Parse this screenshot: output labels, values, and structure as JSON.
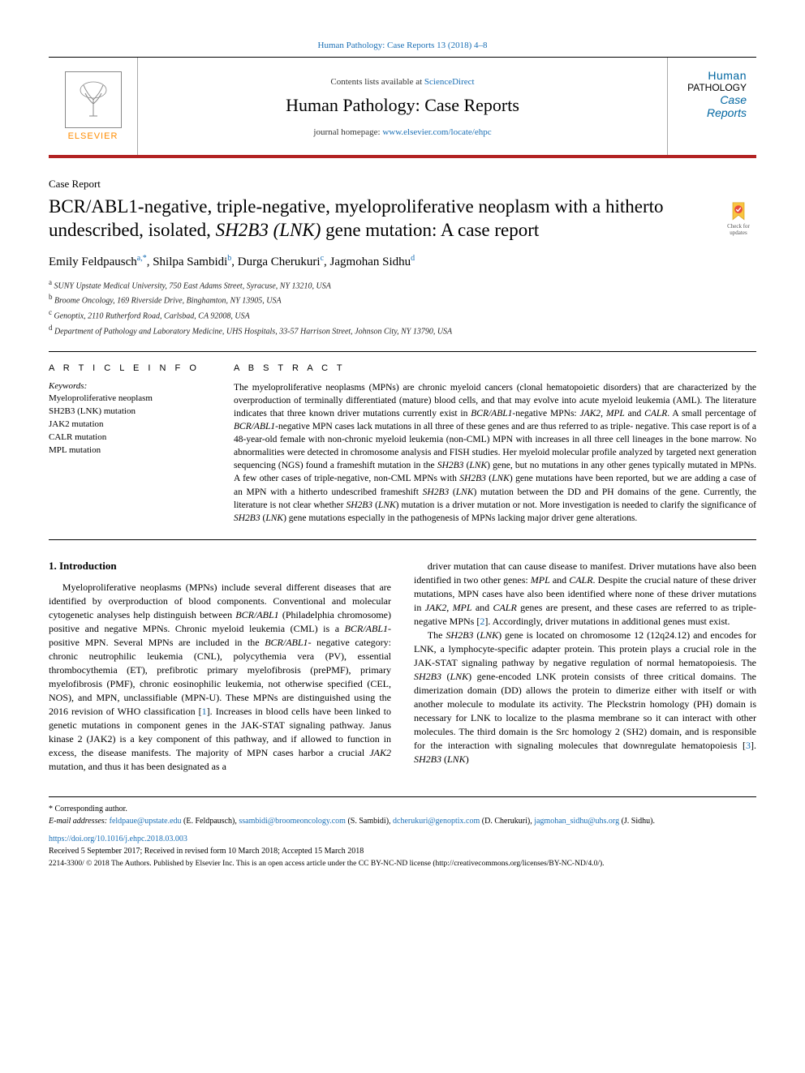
{
  "top_citation": "Human Pathology: Case Reports 13 (2018) 4–8",
  "header": {
    "contents_text": "Contents lists available at ",
    "contents_link": "ScienceDirect",
    "journal_name": "Human Pathology: Case Reports",
    "homepage_text": "journal homepage: ",
    "homepage_link": "www.elsevier.com/locate/ehpc",
    "elsevier_label": "ELSEVIER",
    "cover_l1": "Human",
    "cover_l2": "PATHOLOGY",
    "cover_l3": "Case",
    "cover_l4": "Reports"
  },
  "article_type": "Case Report",
  "title_part1": "BCR/ABL1-negative, triple-negative, myeloproliferative neoplasm with a hitherto undescribed, isolated, ",
  "title_ital": "SH2B3 (LNK)",
  "title_part2": " gene mutation: A case report",
  "check_updates_label": "Check for updates",
  "authors_html": "Emily Feldpausch<sup class='sup'>a,*</sup>, Shilpa Sambidi<sup class='sup'>b</sup>, Durga Cherukuri<sup class='sup'>c</sup>, Jagmohan Sidhu<sup class='sup'>d</sup>",
  "affiliations": [
    {
      "sup": "a",
      "text": "SUNY Upstate Medical University, 750 East Adams Street, Syracuse, NY 13210, USA"
    },
    {
      "sup": "b",
      "text": "Broome Oncology, 169 Riverside Drive, Binghamton, NY 13905, USA"
    },
    {
      "sup": "c",
      "text": "Genoptix, 2110 Rutherford Road, Carlsbad, CA 92008, USA"
    },
    {
      "sup": "d",
      "text": "Department of Pathology and Laboratory Medicine, UHS Hospitals, 33-57 Harrison Street, Johnson City, NY 13790, USA"
    }
  ],
  "article_info_hd": "A R T I C L E  I N F O",
  "abstract_hd": "A B S T R A C T",
  "keywords_label": "Keywords:",
  "keywords": [
    "Myeloproliferative neoplasm",
    "SH2B3 (LNK) mutation",
    "JAK2 mutation",
    "CALR mutation",
    "MPL mutation"
  ],
  "abstract_text": "The myeloproliferative neoplasms (MPNs) are chronic myeloid cancers (clonal hematopoietic disorders) that are characterized by the overproduction of terminally differentiated (mature) blood cells, and that may evolve into acute myeloid leukemia (AML). The literature indicates that three known driver mutations currently exist in <span class='ital'>BCR/ABL1</span>-negative MPNs: <span class='ital'>JAK2</span>, <span class='ital'>MPL</span> and <span class='ital'>CALR</span>. A small percentage of <span class='ital'>BCR/ABL1</span>-negative MPN cases lack mutations in all three of these genes and are thus referred to as triple- negative. This case report is of a 48-year-old female with non-chronic myeloid leukemia (non-CML) MPN with increases in all three cell lineages in the bone marrow. No abnormalities were detected in chromosome analysis and FISH studies. Her myeloid molecular profile analyzed by targeted next generation sequencing (NGS) found a frameshift mutation in the <span class='ital'>SH2B3</span> (<span class='ital'>LNK</span>) gene, but no mutations in any other genes typically mutated in MPNs. A few other cases of triple-negative, non-CML MPNs with <span class='ital'>SH2B3</span> (<span class='ital'>LNK</span>) gene mutations have been reported, but we are adding a case of an MPN with a hitherto undescribed frameshift <span class='ital'>SH2B3</span> (<span class='ital'>LNK</span>) mutation between the DD and PH domains of the gene. Currently, the literature is not clear whether <span class='ital'>SH2B3</span> (<span class='ital'>LNK</span>) mutation is a driver mutation or not. More investigation is needed to clarify the significance of <span class='ital'>SH2B3</span> (<span class='ital'>LNK</span>) gene mutations especially in the pathogenesis of MPNs lacking major driver gene alterations.",
  "intro_hd": "1. Introduction",
  "intro_p1": "Myeloproliferative neoplasms (MPNs) include several different diseases that are identified by overproduction of blood components. Conventional and molecular cytogenetic analyses help distinguish between <span class='ital'>BCR/ABL1</span> (Philadelphia chromosome) positive and negative MPNs. Chronic myeloid leukemia (CML) is a <span class='ital'>BCR/ABL1</span>-positive MPN. Several MPNs are included in the <span class='ital'>BCR/ABL1</span>- negative category: chronic neutrophilic leukemia (CNL), polycythemia vera (PV), essential thrombocythemia (ET), prefibrotic primary myelofibrosis (prePMF), primary myelofibrosis (PMF), chronic eosinophilic leukemia, not otherwise specified (CEL, NOS), and MPN, unclassifiable (MPN-U). These MPNs are distinguished using the 2016 revision of WHO classification [<span class='ref-link'>1</span>]. Increases in blood cells have been linked to genetic mutations in component genes in the JAK-STAT signaling pathway. Janus kinase 2 (JAK2) is a key component of this pathway, and if allowed to function in excess, the disease manifests. The majority of MPN cases harbor a crucial <span class='ital'>JAK2</span> mutation, and thus it has been designated as a",
  "intro_p2": "driver mutation that can cause disease to manifest. Driver mutations have also been identified in two other genes: <span class='ital'>MPL</span> and <span class='ital'>CALR</span>. Despite the crucial nature of these driver mutations, MPN cases have also been identified where none of these driver mutations in <span class='ital'>JAK2</span>, <span class='ital'>MPL</span> and <span class='ital'>CALR</span> genes are present, and these cases are referred to as triple-negative MPNs [<span class='ref-link'>2</span>]. Accordingly, driver mutations in additional genes must exist.",
  "intro_p3": "The <span class='ital'>SH2B3</span> (<span class='ital'>LNK</span>) gene is located on chromosome 12 (12q24.12) and encodes for LNK, a lymphocyte-specific adapter protein. This protein plays a crucial role in the JAK-STAT signaling pathway by negative regulation of normal hematopoiesis. The <span class='ital'>SH2B3</span> (<span class='ital'>LNK</span>) gene-encoded LNK protein consists of three critical domains. The dimerization domain (DD) allows the protein to dimerize either with itself or with another molecule to modulate its activity. The Pleckstrin homology (PH) domain is necessary for LNK to localize to the plasma membrane so it can interact with other molecules. The third domain is the Src homology 2 (SH2) domain, and is responsible for the interaction with signaling molecules that downregulate hematopoiesis [<span class='ref-link'>3</span>]. <span class='ital'>SH2B3</span> (<span class='ital'>LNK</span>)",
  "footer": {
    "corr_label": "* Corresponding author.",
    "email_label": "E-mail addresses: ",
    "emails": "feldpaue@upstate.edu (E. Feldpausch), ssambidi@broomeoncology.com (S. Sambidi), dcherukuri@genoptix.com (D. Cherukuri), jagmohan_sidhu@uhs.org (J. Sidhu).",
    "doi": "https://doi.org/10.1016/j.ehpc.2018.03.003",
    "received": "Received 5 September 2017; Received in revised form 10 March 2018; Accepted 15 March 2018",
    "license": "2214-3300/ © 2018 The Authors. Published by Elsevier Inc. This is an open access article under the CC BY-NC-ND license (http://creativecommons.org/licenses/BY-NC-ND/4.0/)."
  },
  "colors": {
    "accent_red": "#b22222",
    "link_blue": "#1a6fb5",
    "elsevier_orange": "#ff8c00",
    "cover_blue": "#0066a1"
  }
}
